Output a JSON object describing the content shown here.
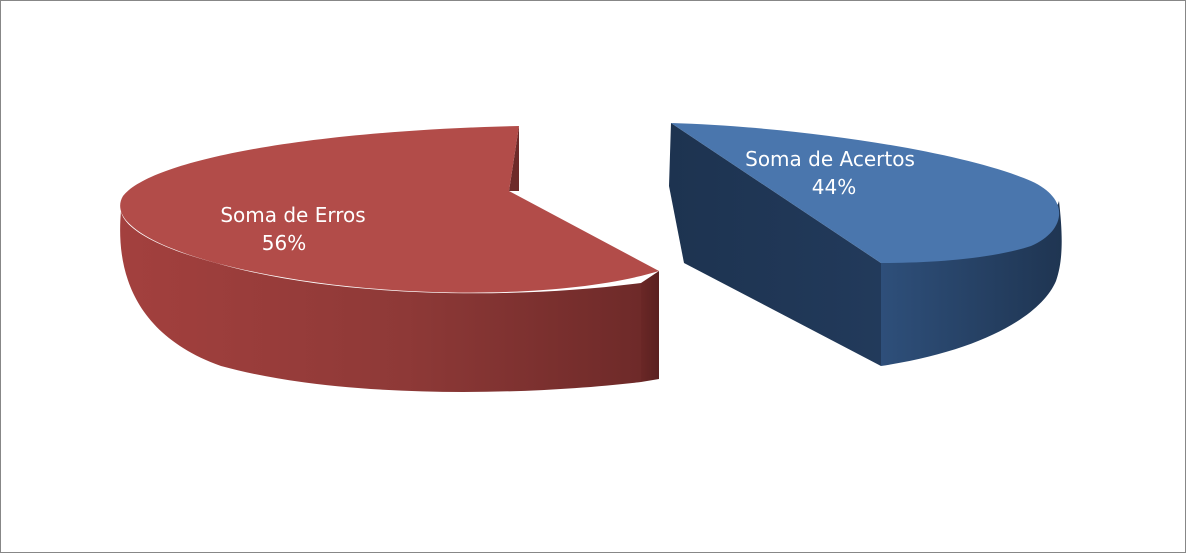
{
  "chart_data": {
    "type": "pie",
    "title": "",
    "categories": [
      "Soma de Erros",
      "Soma de Acertos"
    ],
    "values": [
      56,
      44
    ],
    "labels": [
      {
        "name": "Soma de Erros",
        "percent": "56%"
      },
      {
        "name": "Soma de Acertos",
        "percent": "44%"
      }
    ],
    "colors": [
      "#b24c49",
      "#4a76ad"
    ],
    "style": "3d-exploded",
    "legend": "none"
  }
}
